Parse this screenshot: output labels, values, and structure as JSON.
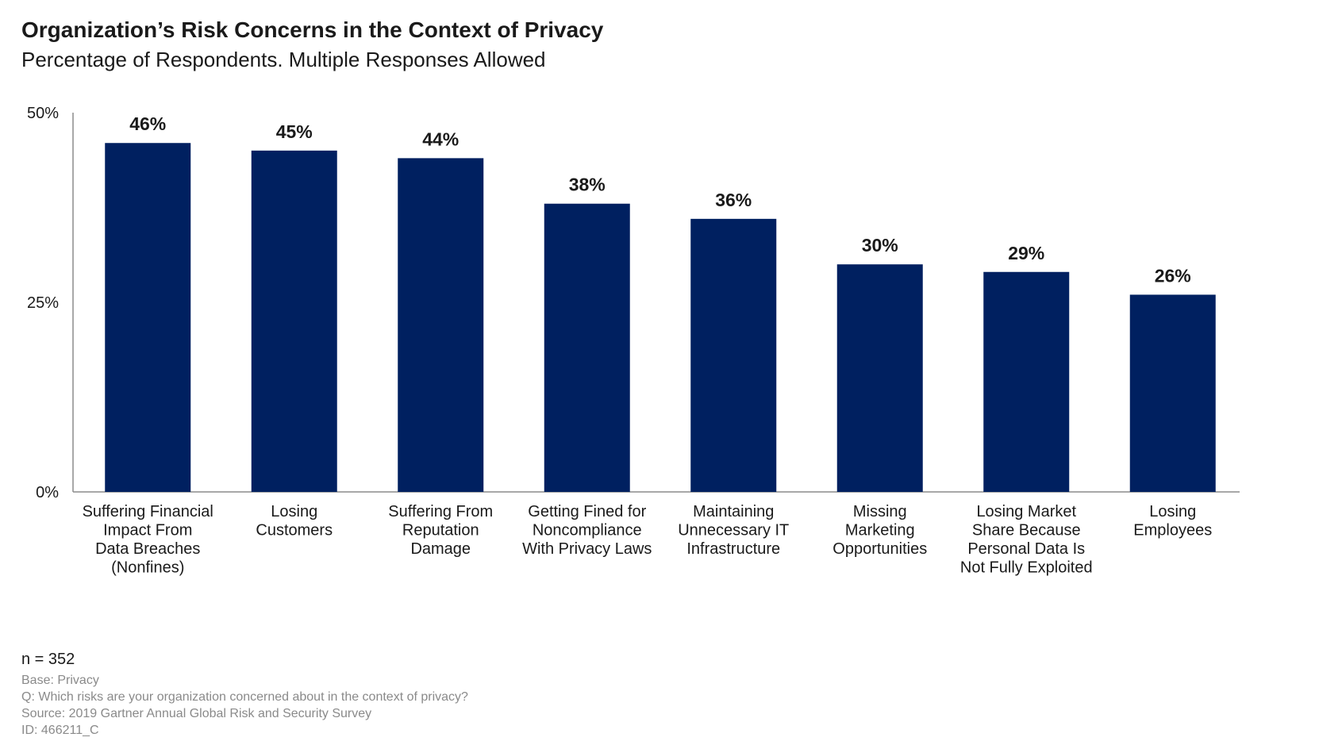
{
  "header": {
    "title": "Organization’s Risk Concerns in the Context of Privacy",
    "subtitle": "Percentage of Respondents. Multiple Responses Allowed"
  },
  "chart_data": {
    "type": "bar",
    "title": "Organization’s Risk Concerns in the Context of Privacy",
    "subtitle": "Percentage of Respondents. Multiple Responses Allowed",
    "categories": [
      [
        "Suffering Financial",
        "Impact From",
        "Data Breaches",
        "(Nonfines)"
      ],
      [
        "Losing",
        "Customers"
      ],
      [
        "Suffering From",
        "Reputation",
        "Damage"
      ],
      [
        "Getting Fined for",
        "Noncompliance",
        "With Privacy Laws"
      ],
      [
        "Maintaining",
        "Unnecessary IT",
        "Infrastructure"
      ],
      [
        "Missing",
        "Marketing",
        "Opportunities"
      ],
      [
        "Losing Market",
        "Share Because",
        "Personal Data Is",
        "Not Fully Exploited"
      ],
      [
        "Losing",
        "Employees"
      ]
    ],
    "values": [
      46,
      45,
      44,
      38,
      36,
      30,
      29,
      26
    ],
    "value_labels": [
      "46%",
      "45%",
      "44%",
      "38%",
      "36%",
      "30%",
      "29%",
      "26%"
    ],
    "yticks": [
      0,
      25,
      50
    ],
    "ytick_labels": [
      "0%",
      "25%",
      "50%"
    ],
    "ylim": [
      0,
      50
    ],
    "xlabel": "",
    "ylabel": "",
    "grid": false,
    "legend": "none",
    "bar_color": "#002060"
  },
  "footer": {
    "n": "n = 352",
    "base": "Base: Privacy",
    "question": "Q: Which risks are your organization concerned about in the context of privacy?",
    "source": "Source: 2019 Gartner Annual Global Risk and Security Survey",
    "id": "ID: 466211_C"
  }
}
